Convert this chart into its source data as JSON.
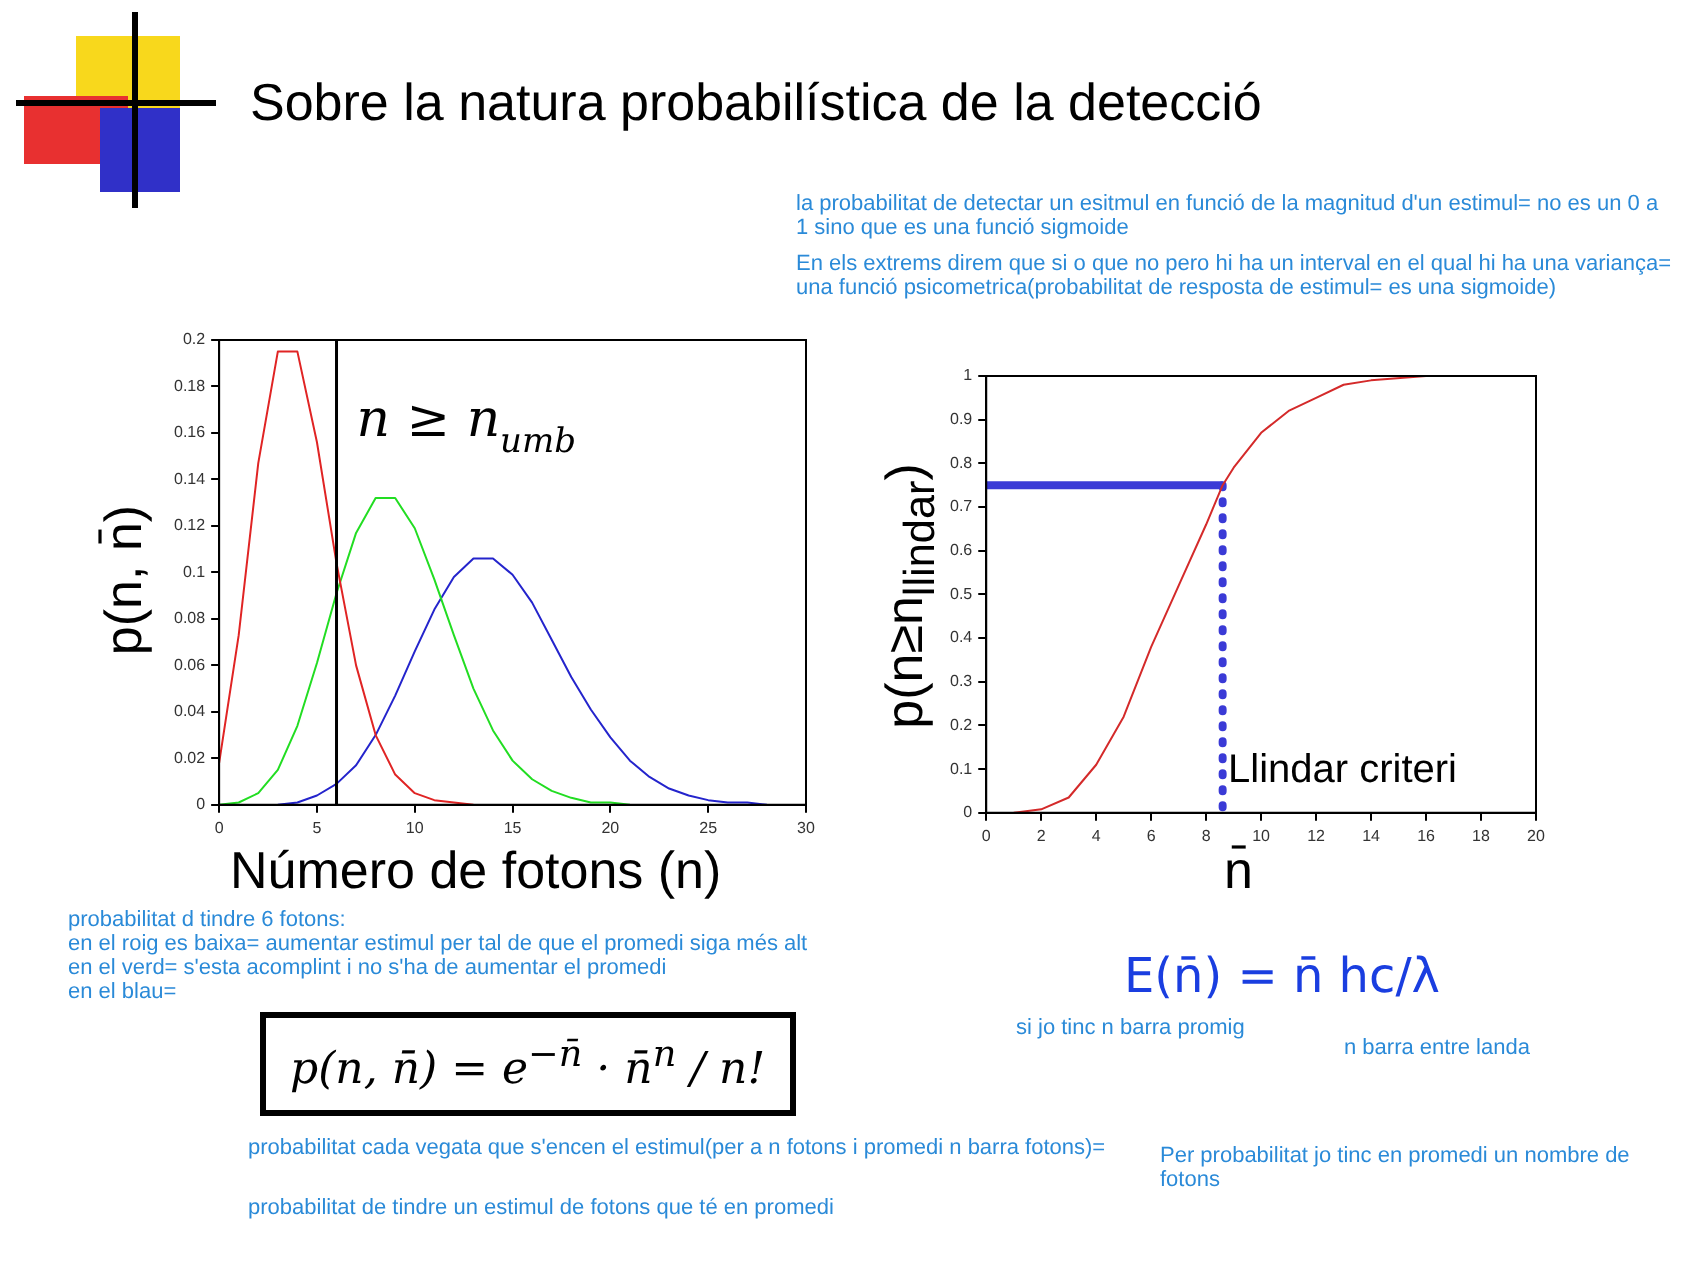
{
  "chart_data": [
    {
      "type": "line",
      "title": "Sobre la natura probabilística de la detecció",
      "xlabel": "Número de fotons (n)",
      "ylabel": "p(n, n̄)",
      "x": [
        0,
        1,
        2,
        3,
        4,
        5,
        6,
        7,
        8,
        9,
        10,
        11,
        12,
        13,
        14,
        15,
        16,
        17,
        18,
        19,
        20,
        21,
        22,
        23,
        24,
        25,
        26,
        27,
        28
      ],
      "xlim": [
        0,
        30
      ],
      "ylim": [
        0,
        0.2
      ],
      "xticks": [
        0,
        5,
        10,
        15,
        20,
        25,
        30
      ],
      "yticks": [
        0,
        0.02,
        0.04,
        0.06,
        0.08,
        0.1,
        0.12,
        0.14,
        0.16,
        0.18,
        0.2
      ],
      "series": [
        {
          "color": "#e02424",
          "values": [
            0.018,
            0.073,
            0.147,
            0.195,
            0.195,
            0.156,
            0.104,
            0.06,
            0.03,
            0.013,
            0.005,
            0.002,
            0.001,
            0,
            null,
            null,
            null,
            null,
            null,
            null,
            null,
            null,
            null,
            null,
            null,
            null,
            null,
            null,
            null
          ]
        },
        {
          "color": "#22dd22",
          "values": [
            0,
            0.001,
            0.005,
            0.015,
            0.034,
            0.061,
            0.091,
            0.117,
            0.132,
            0.132,
            0.119,
            0.097,
            0.073,
            0.05,
            0.032,
            0.019,
            0.011,
            0.006,
            0.003,
            0.001,
            0.001,
            0,
            null,
            null,
            null,
            null,
            null,
            null,
            null
          ]
        },
        {
          "color": "#2424cc",
          "values": [
            null,
            null,
            null,
            0,
            0.001,
            0.004,
            0.009,
            0.017,
            0.03,
            0.047,
            0.066,
            0.084,
            0.098,
            0.106,
            0.106,
            0.099,
            0.087,
            0.071,
            0.055,
            0.041,
            0.029,
            0.019,
            0.012,
            0.007,
            0.004,
            0.002,
            0.001,
            0.001,
            0
          ]
        }
      ],
      "ref_lines": [
        {
          "axis": "x",
          "value": 6,
          "label": "n ≥ n$_{umb}$",
          "color": "#000000"
        }
      ],
      "annotations": [
        "probabilitat d tindre 6 fotons:",
        "en el roig es baixa= aumentar estimul per tal de que el promedi siga més alt",
        "en el verd= s'esta acomplint i no s'ha de aumentar el promedi",
        "en el blau=",
        "p(n, n̄) = e$^{−n̄}$ · n̄$^{n}$ / n!",
        "probabilitat cada vegata que s'encen el estimul(per a n fotons i promedi n barra fotons)=",
        "probabilitat de tindre un estimul de fotons que té en promedi"
      ]
    },
    {
      "type": "line",
      "xlabel": "n̄",
      "ylabel": "p(n≥n$_{llindar}$)",
      "xlim": [
        0,
        20
      ],
      "ylim": [
        0,
        1
      ],
      "xticks": [
        0,
        2,
        4,
        6,
        8,
        10,
        12,
        14,
        16,
        18,
        20
      ],
      "yticks": [
        0,
        0.1,
        0.2,
        0.3,
        0.4,
        0.5,
        0.6,
        0.7,
        0.8,
        0.9,
        1
      ],
      "series": [
        {
          "color": "#d42a2a",
          "x": [
            1,
            2,
            3,
            4,
            5,
            6,
            7,
            8,
            8.6,
            9,
            10,
            11,
            12,
            13,
            14,
            16
          ],
          "values": [
            0,
            0.008,
            0.035,
            0.11,
            0.22,
            0.38,
            0.52,
            0.66,
            0.75,
            0.79,
            0.87,
            0.92,
            0.95,
            0.98,
            0.99,
            1
          ]
        },
        {
          "color": "#3a3ad6",
          "x": [
            0,
            8.6
          ],
          "values": [
            0.75,
            0.75
          ],
          "line_style": "solid"
        },
        {
          "color": "#3a3ad6",
          "x": [
            8.6,
            8.6
          ],
          "values": [
            0.75,
            0
          ],
          "line_style": "dotted"
        }
      ],
      "annotations": [
        "la probabilitat de detectar un esitmul en funció de la magnitud d'un estimul= no es un 0 a 1 sino que es una funció sigmoide",
        "En els extrems direm que si o que no pero hi ha un interval en el qual hi ha una variança= una funció psicometrica(probabilitat de resposta de estimul= es una sigmoide)",
        "Llindar criteri",
        "E(n̄) = n̄ hc/λ",
        "si jo tinc n barra promig",
        "n barra entre landa",
        "Per probabilitat jo tinc en promedi un nombre de fotons"
      ]
    }
  ]
}
